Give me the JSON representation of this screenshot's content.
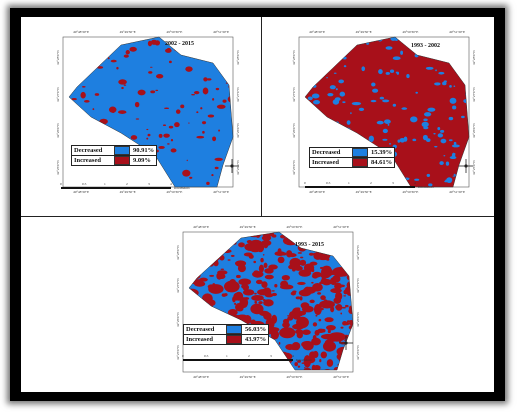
{
  "colors": {
    "decreased": "#1e7fe0",
    "increased": "#a8101a",
    "frame": "#000000"
  },
  "legend_labels": {
    "decreased": "Decreased",
    "increased": "Increased"
  },
  "panels": [
    {
      "period": "2002 - 2015",
      "decreased_pct": "90.91%",
      "increased_pct": "9.09%",
      "decreased_share": 90.91,
      "scale": [
        "0",
        "0.5",
        "1",
        "2",
        "3",
        "4"
      ],
      "scale_unit": "Kilometers",
      "x_ticks": [
        "49°48'30\"E",
        "49°49'30\"E",
        "49°50'30\"E",
        "49°51'30\"E"
      ],
      "y_ticks_left": [
        "32°28'0\"N",
        "32°27'0\"N",
        "32°26'0\"N",
        "32°25'0\"N"
      ],
      "y_ticks_right": [
        "32°28'0\"N",
        "32°27'0\"N",
        "32°26'0\"N",
        "32°25'0\"N"
      ]
    },
    {
      "period": "1993 - 2002",
      "decreased_pct": "15.39%",
      "increased_pct": "84.61%",
      "decreased_share": 15.39,
      "scale": [
        "0",
        "0.5",
        "1",
        "2",
        "3",
        "4"
      ],
      "scale_unit": "Kilometers",
      "x_ticks": [
        "49°48'30\"E",
        "49°49'30\"E",
        "49°50'30\"E",
        "49°51'30\"E"
      ],
      "y_ticks_left": [
        "32°28'0\"N",
        "32°27'0\"N",
        "32°26'0\"N",
        "32°25'0\"N"
      ],
      "y_ticks_right": [
        "32°28'0\"N",
        "32°27'0\"N",
        "32°26'0\"N",
        "32°25'0\"N"
      ]
    },
    {
      "period": "1993 - 2015",
      "decreased_pct": "56.03%",
      "increased_pct": "43.97%",
      "decreased_share": 56.03,
      "scale": [
        "0",
        "0.5",
        "1",
        "2",
        "3",
        "4"
      ],
      "scale_unit": "Kilometers",
      "x_ticks": [
        "49°48'30\"E",
        "49°49'30\"E",
        "49°50'30\"E",
        "49°51'30\"E"
      ],
      "y_ticks_left": [
        "32°28'0\"N",
        "32°27'0\"N",
        "32°26'0\"N",
        "32°25'0\"N"
      ],
      "y_ticks_right": [
        "32°28'0\"N",
        "32°27'0\"N",
        "32°26'0\"N",
        "32°25'0\"N"
      ]
    }
  ]
}
